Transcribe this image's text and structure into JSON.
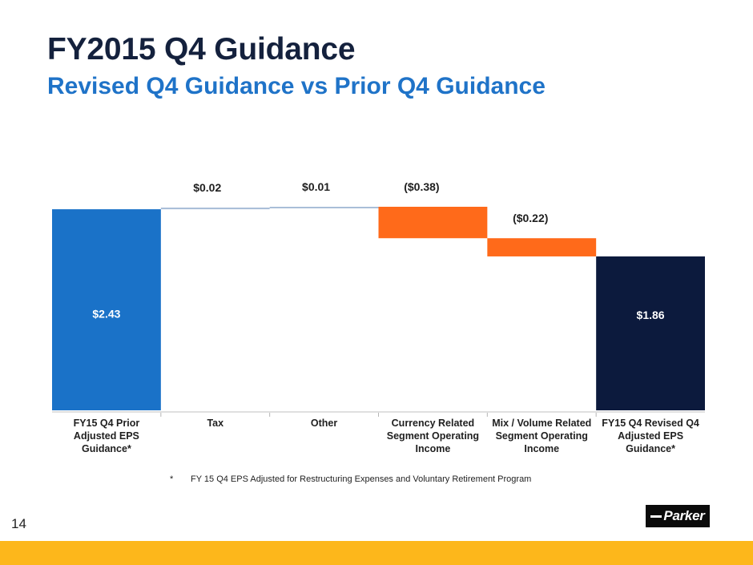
{
  "slide": {
    "title": "FY2015 Q4 Guidance",
    "subtitle": "Revised Q4 Guidance vs Prior Q4 Guidance",
    "footnote_marker": "*",
    "footnote": "FY 15 Q4 EPS Adjusted for Restructuring Expenses and Voluntary Retirement Program",
    "page_number": "14",
    "logo_text": "Parker"
  },
  "colors": {
    "start_bar": "#1a72c8",
    "increase": "#a9bed8",
    "decrease": "#ff6a1a",
    "end_bar": "#0c1a3d",
    "label_dark": "#1f1f1f",
    "label_light": "#ffffff",
    "footer": "#fdb71b"
  },
  "chart_data": {
    "type": "waterfall",
    "title": "",
    "categories": [
      [
        "FY15 Q4 Prior",
        "Adjusted EPS",
        "Guidance*"
      ],
      [
        "Tax"
      ],
      [
        "Other"
      ],
      [
        "Currency Related",
        "Segment Operating",
        "Income"
      ],
      [
        "Mix / Volume Related",
        "Segment Operating",
        "Income"
      ],
      [
        "FY15 Q4 Revised Q4",
        "Adjusted EPS",
        "Guidance*"
      ]
    ],
    "values": [
      2.43,
      0.02,
      0.01,
      -0.38,
      -0.22,
      1.86
    ],
    "kinds": [
      "total",
      "delta",
      "delta",
      "delta",
      "delta",
      "total"
    ],
    "data_labels": [
      "$2.43",
      "$0.02",
      "$0.01",
      "($0.38)",
      "($0.22)",
      "$1.86"
    ],
    "ylim": [
      0,
      2.46
    ],
    "xlabel": "",
    "ylabel": "",
    "grid": false,
    "legend": "none"
  }
}
